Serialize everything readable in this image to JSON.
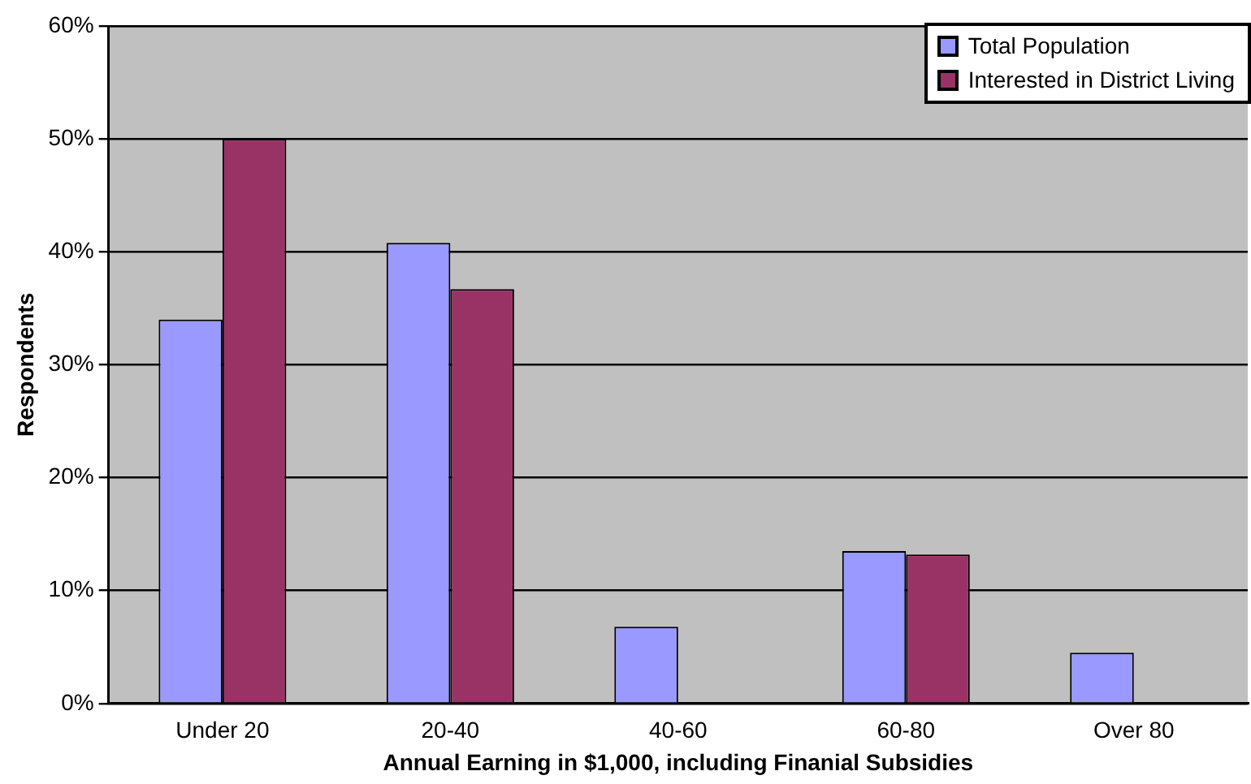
{
  "chart_data": {
    "type": "bar",
    "xlabel": "Annual Earning in $1,000, including Finanial Subsidies",
    "ylabel": "Respondents",
    "categories": [
      "Under 20",
      "20-40",
      "40-60",
      "60-80",
      "Over 80"
    ],
    "series": [
      {
        "name": "Total Population",
        "color": "#9999ff",
        "values": [
          34,
          40.8,
          6.8,
          13.5,
          4.5
        ]
      },
      {
        "name": "Interested in District Living",
        "color": "#993366",
        "values": [
          50,
          36.7,
          null,
          13.2,
          null
        ]
      }
    ],
    "ylim": [
      0,
      60
    ],
    "yticks": [
      {
        "value": 0,
        "label": "0%"
      },
      {
        "value": 10,
        "label": "10%"
      },
      {
        "value": 20,
        "label": "20%"
      },
      {
        "value": 30,
        "label": "30%"
      },
      {
        "value": 40,
        "label": "40%"
      },
      {
        "value": 50,
        "label": "50%"
      },
      {
        "value": 60,
        "label": "60%"
      }
    ],
    "grid": "y",
    "legend": "top right"
  }
}
